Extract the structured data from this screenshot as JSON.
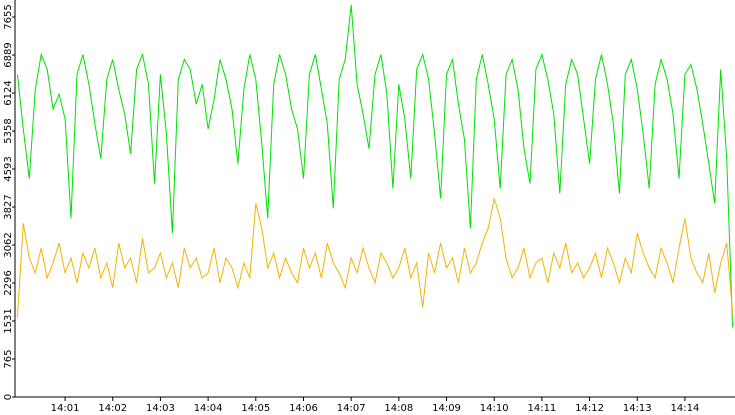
{
  "chart_data": {
    "type": "line",
    "x": [
      0,
      0.125,
      0.25,
      0.375,
      0.5,
      0.625,
      0.75,
      0.875,
      1,
      1.125,
      1.25,
      1.375,
      1.5,
      1.625,
      1.75,
      1.875,
      2,
      2.125,
      2.25,
      2.375,
      2.5,
      2.625,
      2.75,
      2.875,
      3,
      3.125,
      3.25,
      3.375,
      3.5,
      3.625,
      3.75,
      3.875,
      4,
      4.125,
      4.25,
      4.375,
      4.5,
      4.625,
      4.75,
      4.875,
      5,
      5.125,
      5.25,
      5.375,
      5.5,
      5.625,
      5.75,
      5.875,
      6,
      6.125,
      6.25,
      6.375,
      6.5,
      6.625,
      6.75,
      6.875,
      7,
      7.125,
      7.25,
      7.375,
      7.5,
      7.625,
      7.75,
      7.875,
      8,
      8.125,
      8.25,
      8.375,
      8.5,
      8.625,
      8.75,
      8.875,
      9,
      9.125,
      9.25,
      9.375,
      9.5,
      9.625,
      9.75,
      9.875,
      10,
      10.125,
      10.25,
      10.375,
      10.5,
      10.625,
      10.75,
      10.875,
      11,
      11.125,
      11.25,
      11.375,
      11.5,
      11.625,
      11.75,
      11.875,
      12,
      12.125,
      12.25,
      12.375,
      12.5,
      12.625,
      12.75,
      12.875,
      13,
      13.125,
      13.25,
      13.375,
      13.5,
      13.625,
      13.75,
      13.875,
      14,
      14.125,
      14.25,
      14.375,
      14.5,
      14.625,
      14.75,
      14.875,
      15
    ],
    "series": [
      {
        "color": "#00e000",
        "values": [
          6500,
          5400,
          4400,
          6200,
          6900,
          6600,
          5800,
          6100,
          5600,
          3600,
          6500,
          6900,
          6300,
          5500,
          4800,
          6400,
          6800,
          6200,
          5700,
          4900,
          6600,
          6900,
          6300,
          4300,
          6500,
          5300,
          3300,
          6400,
          6800,
          6600,
          5900,
          6300,
          5400,
          6000,
          6800,
          6400,
          5800,
          4700,
          6200,
          6900,
          6400,
          5100,
          3600,
          6300,
          6900,
          6500,
          5800,
          5400,
          4400,
          6500,
          6900,
          6200,
          5500,
          3800,
          6400,
          6800,
          7900,
          6300,
          5700,
          5000,
          6500,
          6900,
          6100,
          4200,
          6300,
          5600,
          4400,
          6600,
          6900,
          6400,
          5300,
          4000,
          6500,
          6800,
          5900,
          5200,
          3400,
          6400,
          6900,
          6300,
          5600,
          4200,
          6500,
          6800,
          6200,
          5000,
          4300,
          6600,
          6900,
          6400,
          5700,
          4100,
          6300,
          6800,
          6500,
          5600,
          4700,
          6400,
          6900,
          6300,
          5500,
          4100,
          6500,
          6800,
          6200,
          5300,
          4200,
          6300,
          6800,
          6400,
          5700,
          4400,
          6500,
          6700,
          6200,
          5500,
          4700,
          3900,
          6600,
          4800,
          1400
        ]
      },
      {
        "color": "#f0b400",
        "values": [
          1600,
          3500,
          2800,
          2500,
          3000,
          2400,
          2700,
          3100,
          2500,
          2800,
          2300,
          2900,
          2600,
          3000,
          2400,
          2700,
          2200,
          3100,
          2600,
          2800,
          2300,
          3200,
          2500,
          2600,
          2900,
          2400,
          2700,
          2200,
          3000,
          2600,
          2800,
          2400,
          2500,
          3000,
          2300,
          2800,
          2600,
          2200,
          2700,
          2400,
          3900,
          3400,
          2600,
          2900,
          2400,
          2800,
          2500,
          2300,
          3000,
          2600,
          2900,
          2400,
          3100,
          2700,
          2500,
          2200,
          2800,
          2500,
          3000,
          2600,
          2300,
          2900,
          2700,
          2400,
          2600,
          3000,
          2400,
          2700,
          1800,
          2900,
          2500,
          3100,
          2600,
          2800,
          2300,
          3000,
          2500,
          2700,
          3100,
          3400,
          4000,
          3600,
          2800,
          2400,
          2600,
          3000,
          2400,
          2700,
          2800,
          2300,
          2900,
          2600,
          3100,
          2500,
          2700,
          2400,
          2600,
          2900,
          2400,
          3000,
          2700,
          2300,
          2800,
          2500,
          3300,
          2900,
          2600,
          2400,
          3000,
          2700,
          2300,
          3000,
          3600,
          2800,
          2500,
          2300,
          2900,
          2100,
          2700,
          3100,
          1700
        ]
      }
    ],
    "xlim": [
      -0.05,
      15.05
    ],
    "xticks": [
      {
        "value": 1,
        "label": "14:01"
      },
      {
        "value": 2,
        "label": "14:02"
      },
      {
        "value": 3,
        "label": "14:03"
      },
      {
        "value": 4,
        "label": "14:04"
      },
      {
        "value": 5,
        "label": "14:05"
      },
      {
        "value": 6,
        "label": "14:06"
      },
      {
        "value": 7,
        "label": "14:07"
      },
      {
        "value": 8,
        "label": "14:08"
      },
      {
        "value": 9,
        "label": "14:09"
      },
      {
        "value": 10,
        "label": "14:10"
      },
      {
        "value": 11,
        "label": "14:11"
      },
      {
        "value": 12,
        "label": "14:12"
      },
      {
        "value": 13,
        "label": "14:13"
      },
      {
        "value": 14,
        "label": "14:14"
      }
    ],
    "ylim": [
      0,
      7998
    ],
    "yticks": [
      0,
      765,
      1531,
      2296,
      3062,
      3827,
      4593,
      5358,
      6124,
      6889,
      7655
    ]
  }
}
